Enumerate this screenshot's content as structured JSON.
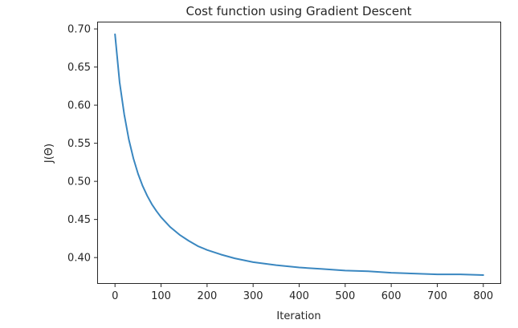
{
  "chart_data": {
    "type": "line",
    "title": "Cost function using Gradient Descent",
    "xlabel": "Iteration",
    "ylabel": "J(Θ)",
    "xlim": [
      -37,
      837
    ],
    "ylim": [
      0.3665,
      0.7085
    ],
    "xticks": [
      0,
      100,
      200,
      300,
      400,
      500,
      600,
      700,
      800
    ],
    "xtick_labels": [
      "0",
      "100",
      "200",
      "300",
      "400",
      "500",
      "600",
      "700",
      "800"
    ],
    "yticks": [
      0.4,
      0.45,
      0.5,
      0.55,
      0.6,
      0.65,
      0.7
    ],
    "ytick_labels": [
      "0.40",
      "0.45",
      "0.50",
      "0.55",
      "0.60",
      "0.65",
      "0.70"
    ],
    "grid": false,
    "legend": "none",
    "series": [
      {
        "color": "#3a87c0",
        "x": [
          0,
          10,
          20,
          30,
          40,
          50,
          60,
          70,
          80,
          90,
          100,
          120,
          140,
          160,
          180,
          200,
          230,
          260,
          300,
          350,
          400,
          450,
          500,
          550,
          600,
          650,
          700,
          750,
          800
        ],
        "y": [
          0.693,
          0.63,
          0.588,
          0.555,
          0.53,
          0.51,
          0.494,
          0.481,
          0.47,
          0.461,
          0.453,
          0.44,
          0.43,
          0.422,
          0.415,
          0.41,
          0.404,
          0.399,
          0.394,
          0.39,
          0.387,
          0.385,
          0.383,
          0.382,
          0.38,
          0.379,
          0.378,
          0.378,
          0.377
        ]
      }
    ]
  }
}
